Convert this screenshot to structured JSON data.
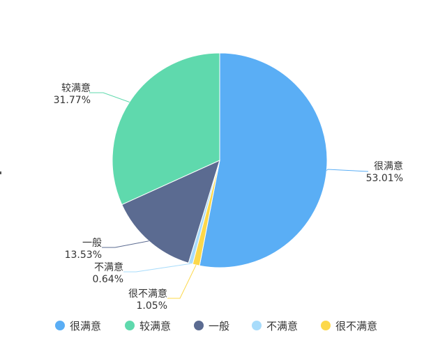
{
  "chart_data": {
    "type": "pie",
    "title": "",
    "categories": [
      "很满意",
      "较满意",
      "一般",
      "不满意",
      "很不满意"
    ],
    "values": [
      53.01,
      31.77,
      13.53,
      0.64,
      1.05
    ],
    "value_labels": [
      "53.01%",
      "31.77%",
      "13.53%",
      "0.64%",
      "1.05%"
    ],
    "colors": [
      "#5aaef5",
      "#5fd9ad",
      "#5b6b91",
      "#a8dcfb",
      "#fcd84a"
    ],
    "direction": "clockwise",
    "legend": {
      "position": "bottom",
      "shape": "circle"
    }
  }
}
